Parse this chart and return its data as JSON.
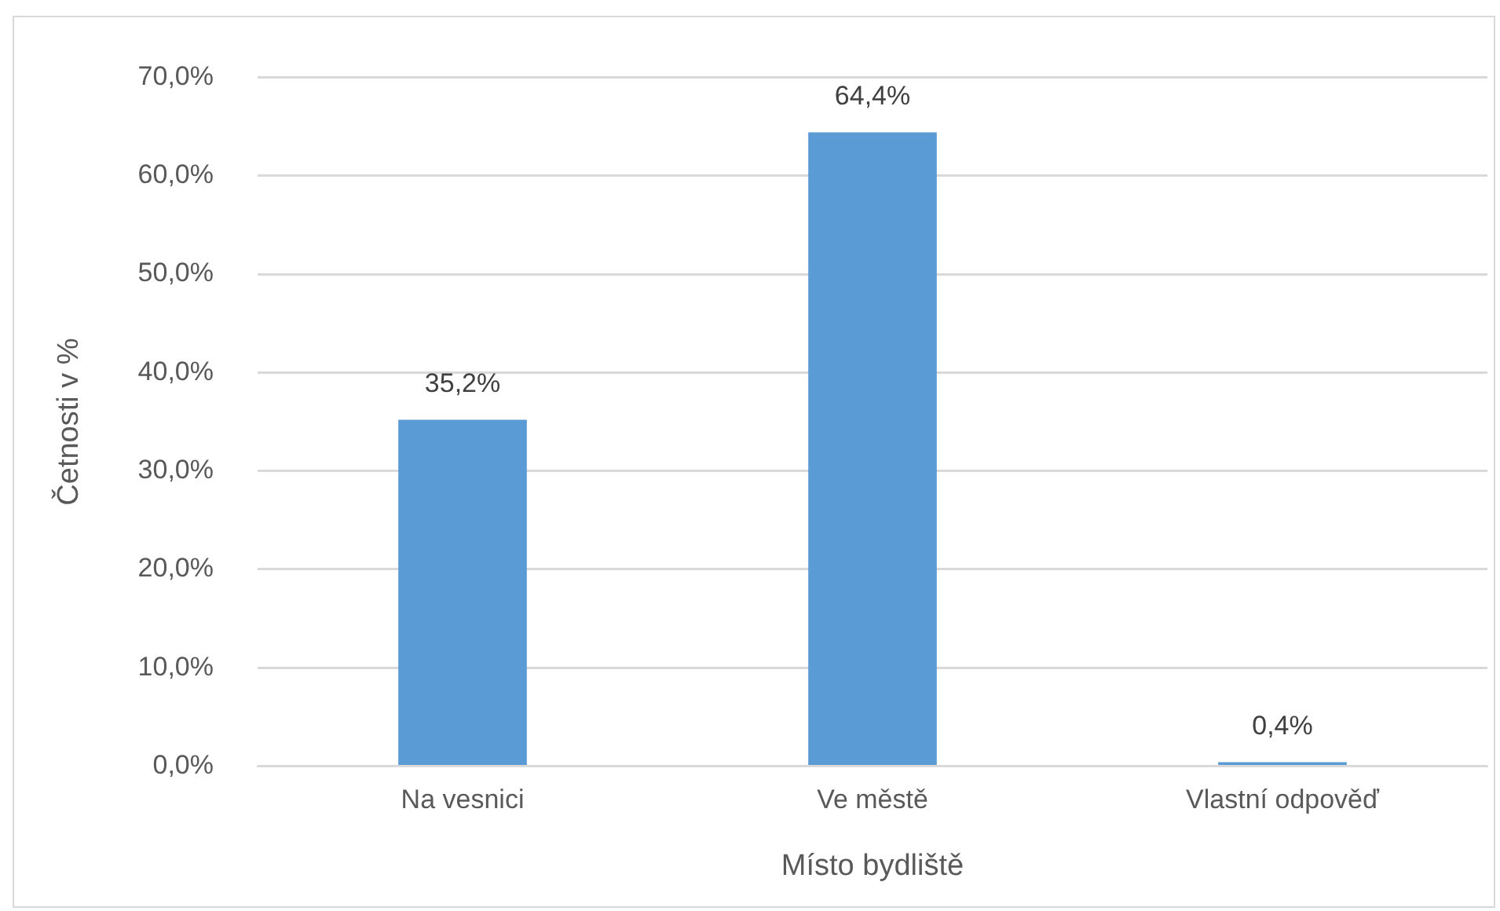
{
  "chart_data": {
    "type": "bar",
    "xlabel": "Místo bydliště",
    "ylabel": "Četnosti v %",
    "categories": [
      "Na vesnici",
      "Ve městě",
      "Vlastní odpověď"
    ],
    "values": [
      35.2,
      64.4,
      0.4
    ],
    "value_labels": [
      "35,2%",
      "64,4%",
      "0,4%"
    ],
    "color": "#5b9bd5",
    "ylim": [
      0,
      70
    ],
    "yticks": [
      {
        "value": 0,
        "label": "0,0%"
      },
      {
        "value": 10,
        "label": "10,0%"
      },
      {
        "value": 20,
        "label": "20,0%"
      },
      {
        "value": 30,
        "label": "30,0%"
      },
      {
        "value": 40,
        "label": "40,0%"
      },
      {
        "value": 50,
        "label": "50,0%"
      },
      {
        "value": 60,
        "label": "60,0%"
      },
      {
        "value": 70,
        "label": "70,0%"
      }
    ],
    "grid": "y",
    "legend": false
  }
}
